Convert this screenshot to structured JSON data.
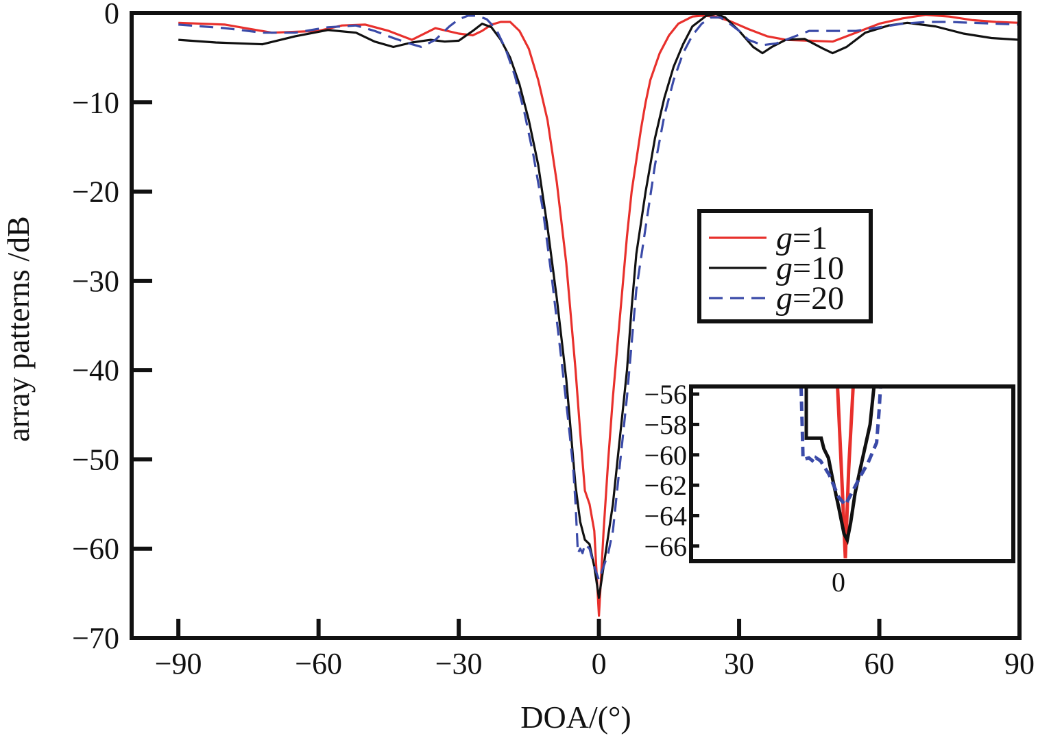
{
  "chart_data": [
    {
      "type": "line",
      "title": "",
      "xlabel": "DOA/(°)",
      "ylabel": "array patterns /dB",
      "xlim": [
        -100,
        90
      ],
      "ylim": [
        -70,
        0
      ],
      "xticks": [
        -90,
        -60,
        -30,
        0,
        30,
        60,
        90
      ],
      "yticks": [
        0,
        -10,
        -20,
        -30,
        -40,
        -50,
        -60,
        -70
      ],
      "xtick_labels": [
        "−90",
        "−60",
        "−30",
        "0",
        "30",
        "60",
        "90"
      ],
      "ytick_labels": [
        "0",
        "−10",
        "−20",
        "−30",
        "−40",
        "−50",
        "−60",
        "−70"
      ],
      "grid": false,
      "legend_position": "center-right",
      "series": [
        {
          "name": "g=1",
          "color": "#e8302c",
          "dash": "solid",
          "points": [
            [
              -90,
              -1.1
            ],
            [
              -80,
              -1.3
            ],
            [
              -70,
              -2.2
            ],
            [
              -60,
              -2.0
            ],
            [
              -55,
              -1.4
            ],
            [
              -50,
              -1.3
            ],
            [
              -45,
              -2.0
            ],
            [
              -40,
              -3.0
            ],
            [
              -35,
              -1.7
            ],
            [
              -30,
              -2.3
            ],
            [
              -27,
              -2.5
            ],
            [
              -25,
              -2.0
            ],
            [
              -23,
              -1.3
            ],
            [
              -21,
              -1.0
            ],
            [
              -19,
              -1.0
            ],
            [
              -17,
              -2.0
            ],
            [
              -15,
              -4.0
            ],
            [
              -13,
              -7.5
            ],
            [
              -11,
              -12
            ],
            [
              -9,
              -19
            ],
            [
              -7,
              -28
            ],
            [
              -5,
              -40
            ],
            [
              -4,
              -47
            ],
            [
              -3,
              -53.5
            ],
            [
              -2,
              -55
            ],
            [
              -1,
              -58
            ],
            [
              0,
              -67.5
            ],
            [
              1,
              -58
            ],
            [
              2,
              -50
            ],
            [
              3,
              -43
            ],
            [
              4,
              -37
            ],
            [
              5,
              -31
            ],
            [
              6,
              -25
            ],
            [
              7,
              -20
            ],
            [
              8,
              -16.5
            ],
            [
              9,
              -13
            ],
            [
              10,
              -10
            ],
            [
              11,
              -7.5
            ],
            [
              13,
              -4.5
            ],
            [
              15,
              -2.5
            ],
            [
              17,
              -1.2
            ],
            [
              20,
              -0.4
            ],
            [
              22,
              -0.3
            ],
            [
              25,
              -0.4
            ],
            [
              28,
              -0.9
            ],
            [
              32,
              -1.8
            ],
            [
              36,
              -2.6
            ],
            [
              40,
              -3.0
            ],
            [
              45,
              -3.1
            ],
            [
              50,
              -3.2
            ],
            [
              55,
              -2.2
            ],
            [
              60,
              -1.2
            ],
            [
              65,
              -0.6
            ],
            [
              70,
              -0.2
            ],
            [
              75,
              -0.4
            ],
            [
              80,
              -0.8
            ],
            [
              85,
              -1.0
            ],
            [
              90,
              -1.1
            ]
          ]
        },
        {
          "name": "g=10",
          "color": "#111111",
          "dash": "solid",
          "points": [
            [
              -90,
              -3.0
            ],
            [
              -82,
              -3.3
            ],
            [
              -72,
              -3.5
            ],
            [
              -65,
              -2.6
            ],
            [
              -58,
              -1.9
            ],
            [
              -52,
              -2.2
            ],
            [
              -48,
              -3.2
            ],
            [
              -44,
              -3.8
            ],
            [
              -40,
              -3.3
            ],
            [
              -36,
              -3.0
            ],
            [
              -33,
              -3.2
            ],
            [
              -30,
              -3.1
            ],
            [
              -27,
              -2.0
            ],
            [
              -25,
              -1.2
            ],
            [
              -23,
              -1.6
            ],
            [
              -21,
              -3.0
            ],
            [
              -19,
              -5.0
            ],
            [
              -17,
              -8.0
            ],
            [
              -15,
              -12
            ],
            [
              -13,
              -17
            ],
            [
              -11,
              -24
            ],
            [
              -9,
              -32
            ],
            [
              -7,
              -41
            ],
            [
              -6,
              -47
            ],
            [
              -5,
              -53
            ],
            [
              -4,
              -57
            ],
            [
              -3,
              -59
            ],
            [
              -2,
              -59.5
            ],
            [
              -1,
              -62
            ],
            [
              0,
              -65.5
            ],
            [
              1,
              -62
            ],
            [
              2,
              -58.5
            ],
            [
              3,
              -55
            ],
            [
              4,
              -50
            ],
            [
              5,
              -45
            ],
            [
              6,
              -40
            ],
            [
              7,
              -33
            ],
            [
              8,
              -27
            ],
            [
              10,
              -20
            ],
            [
              12,
              -14
            ],
            [
              14,
              -9.5
            ],
            [
              16,
              -6
            ],
            [
              18,
              -3.5
            ],
            [
              20,
              -1.5
            ],
            [
              23,
              -0.3
            ],
            [
              25,
              -0.1
            ],
            [
              27,
              -0.5
            ],
            [
              30,
              -2.0
            ],
            [
              33,
              -3.8
            ],
            [
              35,
              -4.5
            ],
            [
              37,
              -3.8
            ],
            [
              40,
              -3.0
            ],
            [
              44,
              -2.9
            ],
            [
              48,
              -4.0
            ],
            [
              50,
              -4.5
            ],
            [
              53,
              -3.8
            ],
            [
              57,
              -2.2
            ],
            [
              62,
              -1.4
            ],
            [
              66,
              -1.1
            ],
            [
              72,
              -1.5
            ],
            [
              78,
              -2.3
            ],
            [
              84,
              -2.8
            ],
            [
              90,
              -3.0
            ]
          ]
        },
        {
          "name": "g=20",
          "color": "#3a4aa8",
          "dash": "dashed",
          "points": [
            [
              -90,
              -1.3
            ],
            [
              -80,
              -1.7
            ],
            [
              -72,
              -2.2
            ],
            [
              -65,
              -2.2
            ],
            [
              -58,
              -1.6
            ],
            [
              -52,
              -1.4
            ],
            [
              -48,
              -2.0
            ],
            [
              -44,
              -2.8
            ],
            [
              -40,
              -3.5
            ],
            [
              -38,
              -3.8
            ],
            [
              -35,
              -3.0
            ],
            [
              -32,
              -1.5
            ],
            [
              -30,
              -0.7
            ],
            [
              -28,
              -0.3
            ],
            [
              -26,
              -0.3
            ],
            [
              -24,
              -0.7
            ],
            [
              -22,
              -1.8
            ],
            [
              -20,
              -4.0
            ],
            [
              -18,
              -7.0
            ],
            [
              -16,
              -11
            ],
            [
              -14,
              -16
            ],
            [
              -12,
              -22
            ],
            [
              -10,
              -30
            ],
            [
              -8,
              -39
            ],
            [
              -6.5,
              -46
            ],
            [
              -5.5,
              -51
            ],
            [
              -5,
              -55
            ],
            [
              -4.5,
              -60.5
            ],
            [
              -4,
              -60
            ],
            [
              -3.5,
              -60.5
            ],
            [
              -3,
              -59.5
            ],
            [
              -2,
              -60
            ],
            [
              -1,
              -62
            ],
            [
              0,
              -63.5
            ],
            [
              1,
              -62
            ],
            [
              2,
              -60.5
            ],
            [
              3,
              -58
            ],
            [
              4,
              -53
            ],
            [
              5,
              -48
            ],
            [
              6,
              -43
            ],
            [
              7,
              -37
            ],
            [
              8,
              -31
            ],
            [
              10,
              -24
            ],
            [
              12,
              -17
            ],
            [
              14,
              -11.5
            ],
            [
              16,
              -7.5
            ],
            [
              18,
              -4.5
            ],
            [
              20,
              -2.5
            ],
            [
              22,
              -1.2
            ],
            [
              24,
              -0.5
            ],
            [
              26,
              -0.5
            ],
            [
              28,
              -1.2
            ],
            [
              30,
              -2.0
            ],
            [
              32,
              -3.0
            ],
            [
              35,
              -3.6
            ],
            [
              38,
              -3.4
            ],
            [
              41,
              -2.8
            ],
            [
              45,
              -2.0
            ],
            [
              50,
              -2.0
            ],
            [
              55,
              -2.0
            ],
            [
              60,
              -1.6
            ],
            [
              65,
              -1.2
            ],
            [
              70,
              -1.0
            ],
            [
              75,
              -1.0
            ],
            [
              80,
              -1.1
            ],
            [
              85,
              -1.2
            ],
            [
              90,
              -1.3
            ]
          ]
        }
      ]
    },
    {
      "type": "line",
      "title": "",
      "xlabel": "",
      "ylabel": "",
      "xlim": [
        -1,
        1
      ],
      "ylim": [
        -67,
        -55.5
      ],
      "xticks": [
        0
      ],
      "xtick_labels": [
        "0"
      ],
      "yticks": [
        -56,
        -58,
        -60,
        -62,
        -64,
        -66
      ],
      "ytick_labels": [
        "−56",
        "−58",
        "−60",
        "−62",
        "−64",
        "−66"
      ],
      "grid": false,
      "series": [
        {
          "name": "g=1",
          "color": "#e8302c",
          "dash": "solid",
          "points": [
            [
              -0.12,
              -55.5
            ],
            [
              -0.06,
              -61
            ],
            [
              0,
              -66.8
            ],
            [
              0.05,
              -61
            ],
            [
              0.12,
              -55.5
            ]
          ]
        },
        {
          "name": "g=10",
          "color": "#111111",
          "dash": "solid",
          "points": [
            [
              -0.6,
              -55.5
            ],
            [
              -0.6,
              -58.9
            ],
            [
              -0.48,
              -58.9
            ],
            [
              -0.37,
              -58.9
            ],
            [
              -0.33,
              -59.6
            ],
            [
              -0.26,
              -60.2
            ],
            [
              -0.2,
              -61.5
            ],
            [
              -0.1,
              -63.5
            ],
            [
              -0.02,
              -65.2
            ],
            [
              0.03,
              -65.6
            ],
            [
              0.08,
              -64.5
            ],
            [
              0.15,
              -62.5
            ],
            [
              0.25,
              -60.5
            ],
            [
              0.38,
              -58
            ],
            [
              0.44,
              -55.5
            ]
          ]
        },
        {
          "name": "g=20",
          "color": "#3a4aa8",
          "dash": "dashed",
          "points": [
            [
              -0.68,
              -55.5
            ],
            [
              -0.66,
              -58.5
            ],
            [
              -0.65,
              -60.3
            ],
            [
              -0.56,
              -60.2
            ],
            [
              -0.47,
              -60.5
            ],
            [
              -0.45,
              -60.2
            ],
            [
              -0.38,
              -60.4
            ],
            [
              -0.25,
              -61.3
            ],
            [
              -0.1,
              -62.8
            ],
            [
              0.0,
              -63.3
            ],
            [
              0.1,
              -62.5
            ],
            [
              0.22,
              -61.5
            ],
            [
              0.35,
              -60.5
            ],
            [
              0.48,
              -59.2
            ],
            [
              0.52,
              -57
            ],
            [
              0.54,
              -55.5
            ]
          ]
        }
      ]
    }
  ]
}
